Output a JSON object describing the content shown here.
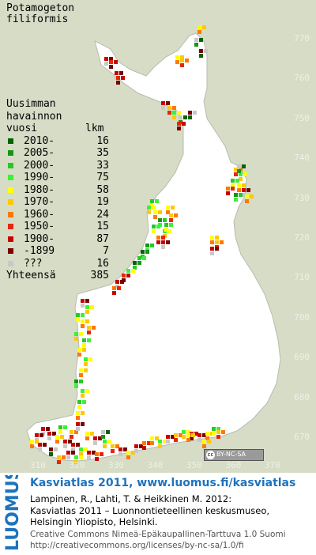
{
  "species": [
    "Potamogeton",
    "filiformis"
  ],
  "legend": {
    "title": [
      "Uusimman",
      "havainnon"
    ],
    "col_year": "vuosi",
    "col_count": "lkm",
    "rows": [
      {
        "label": "2010-",
        "count": "16",
        "color": "#006400"
      },
      {
        "label": "2005-",
        "count": "35",
        "color": "#149614"
      },
      {
        "label": "2000-",
        "count": "33",
        "color": "#28c828"
      },
      {
        "label": "1990-",
        "count": "75",
        "color": "#3cf03c"
      },
      {
        "label": "1980-",
        "count": "58",
        "color": "#ffff00"
      },
      {
        "label": "1970-",
        "count": "19",
        "color": "#ffc800"
      },
      {
        "label": "1960-",
        "count": "24",
        "color": "#ff7800"
      },
      {
        "label": "1950-",
        "count": "15",
        "color": "#e62800"
      },
      {
        "label": "1900-",
        "count": "87",
        "color": "#c80000"
      },
      {
        "label": "-1899",
        "count": "7",
        "color": "#780000"
      },
      {
        "label": "???",
        "count": "16",
        "color": "#c8c8c8"
      }
    ],
    "total_label": "Yhteensä",
    "total_count": "385"
  },
  "y_axis": [
    "770",
    "760",
    "750",
    "740",
    "730",
    "720",
    "710",
    "700",
    "690",
    "680",
    "670"
  ],
  "x_axis": [
    "310",
    "320",
    "330",
    "340",
    "350",
    "360",
    "370"
  ],
  "license_badge": "BY-NC-SA",
  "footer": {
    "logo_text": "LUOMUS",
    "line1": "Kasviatlas 2011, www.luomus.fi/kasviatlas",
    "line2": "Lampinen, R., Lahti, T. & Heikkinen M. 2012:",
    "line3": "Kasviatlas 2011 – Luonnontieteellinen keskusmuseo,",
    "line4": "Helsingin Yliopisto, Helsinki.",
    "line5": "Creative Commons Nimeä-Epäkaupallinen-Tarttuva 1.0 Suomi",
    "line6": "http://creativecommons.org/licenses/by-nc-sa/1.0/fi"
  },
  "colors": {
    "background": "#d6dcc6",
    "land": "#ffffff",
    "grid_label": "#eef0e6",
    "footer_title": "#1e73bd"
  }
}
